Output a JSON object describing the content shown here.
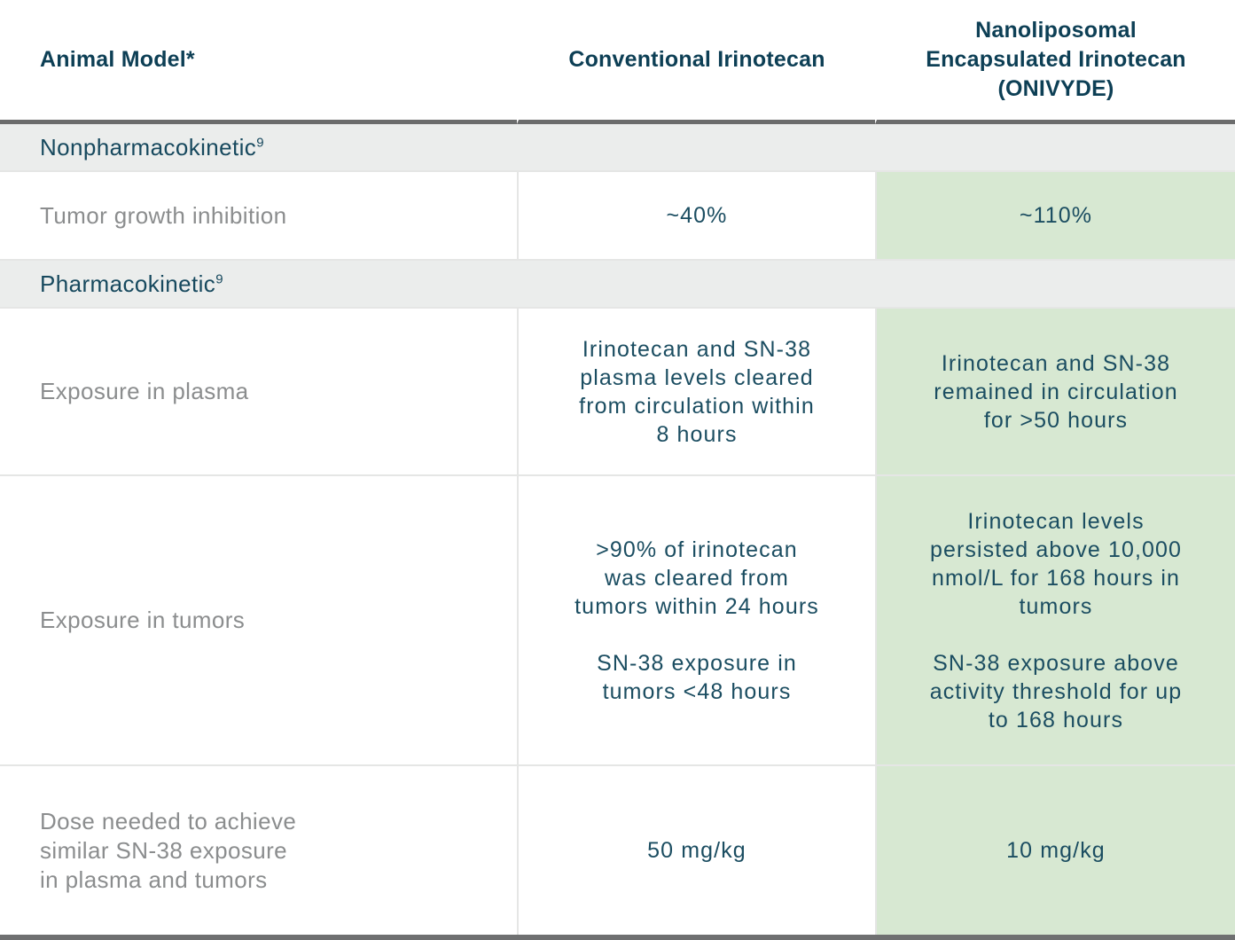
{
  "colors": {
    "header_text": "#0d3f55",
    "data_text": "#1b4d61",
    "section_text": "#17495e",
    "row_label_text": "#8b8d8e",
    "section_band_bg": "#ebedec",
    "highlight_green_bg": "#d7e8d2",
    "light_rule": "#e5e6e5",
    "dark_rule": "#6f7071"
  },
  "table": {
    "columns": [
      {
        "id": "animal_model",
        "label": "Animal Model*"
      },
      {
        "id": "conventional",
        "label": "Conventional Irinotecan"
      },
      {
        "id": "onivyde",
        "label": "Nanoliposomal\nEncapsulated Irinotecan\n(ONIVYDE)"
      }
    ],
    "rows": [
      {
        "type": "section",
        "label": "Nonpharmacokinetic",
        "sup": "9"
      },
      {
        "type": "data",
        "label": "Tumor growth inhibition",
        "conventional": "~40%",
        "onivyde": "~110%"
      },
      {
        "type": "section",
        "label": "Pharmacokinetic",
        "sup": "9"
      },
      {
        "type": "data",
        "label": "Exposure in plasma",
        "conventional": "Irinotecan and SN-38\nplasma levels cleared\nfrom circulation within\n8 hours",
        "onivyde": "Irinotecan and SN-38\nremained in circulation\nfor >50 hours"
      },
      {
        "type": "data",
        "label": "Exposure in tumors",
        "conventional": ">90% of irinotecan\nwas cleared from\ntumors within 24 hours\n\nSN-38 exposure in\ntumors <48 hours",
        "onivyde": "Irinotecan levels\npersisted above 10,000\nnmol/L for 168 hours in\ntumors\n\nSN-38 exposure above\nactivity threshold for up\nto 168 hours"
      },
      {
        "type": "data",
        "label": "Dose needed to achieve\nsimilar SN-38 exposure\nin plasma and tumors",
        "conventional": "50 mg/kg",
        "onivyde": "10 mg/kg"
      }
    ]
  }
}
